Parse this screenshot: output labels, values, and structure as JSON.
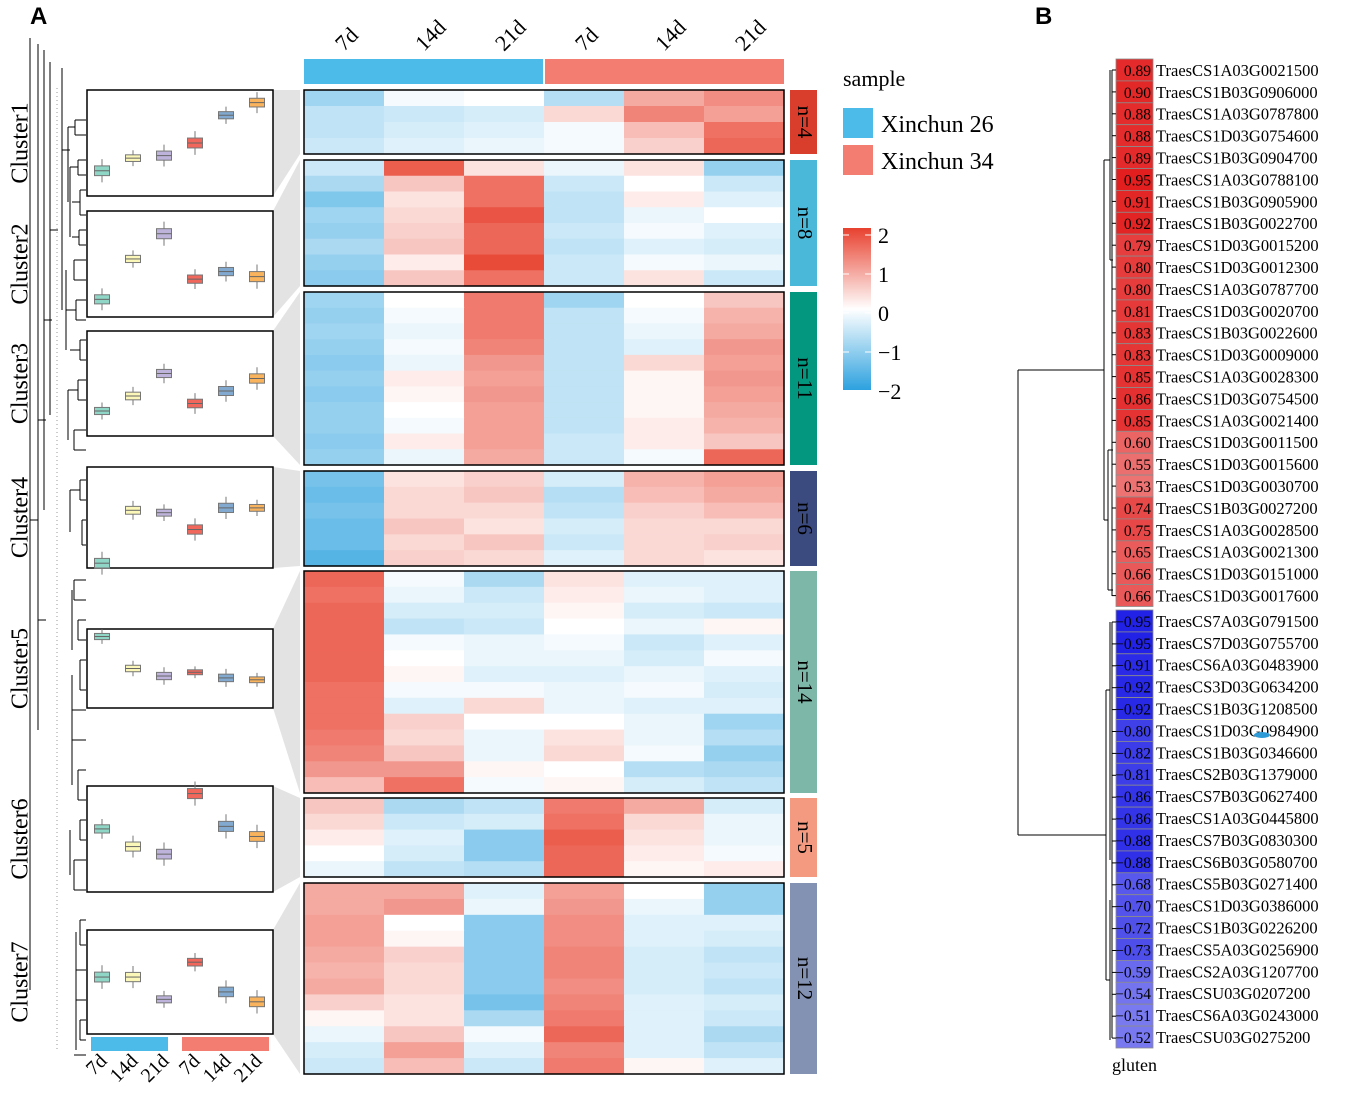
{
  "chart_data": [
    {
      "panel": "A",
      "type": "heatmap",
      "time_labels": [
        "7d",
        "14d",
        "21d",
        "7d",
        "14d",
        "21d"
      ],
      "samples": [
        {
          "name": "Xinchun 26",
          "color": "#4DBBEA",
          "columns": [
            "7d",
            "14d",
            "21d"
          ]
        },
        {
          "name": "Xinchun 34",
          "color": "#F47D72",
          "columns": [
            "7d",
            "14d",
            "21d"
          ]
        }
      ],
      "legend_title": "sample",
      "colorscale": {
        "min": -2,
        "max": 2,
        "ticks": [
          "2",
          "1",
          "0",
          "−1",
          "−2"
        ],
        "colors": [
          "#2CA1DF",
          "#ffffff",
          "#E8412F"
        ]
      },
      "clusters": [
        {
          "name": "Cluster1",
          "n_label": "n=4",
          "color": "#D93D2B",
          "box_medians": [
            -1.1,
            -0.6,
            -0.5,
            0.0,
            1.1,
            1.6
          ],
          "rows": [
            [
              -0.9,
              -0.1,
              0.0,
              -0.7,
              0.9,
              1.2
            ],
            [
              -0.6,
              -0.5,
              -0.4,
              0.4,
              1.3,
              1.0
            ],
            [
              -0.6,
              -0.4,
              -0.3,
              -0.1,
              0.7,
              1.5
            ],
            [
              -0.5,
              -0.3,
              -0.2,
              -0.1,
              0.5,
              1.6
            ]
          ]
        },
        {
          "name": "Cluster2",
          "n_label": "n=8",
          "color": "#4AB9D9",
          "box_medians": [
            -1.4,
            0.2,
            1.2,
            -0.6,
            -0.3,
            -0.5
          ],
          "rows": [
            [
              -0.5,
              1.7,
              0.3,
              -0.2,
              0.3,
              -1.0
            ],
            [
              -0.8,
              0.6,
              1.5,
              -0.5,
              0.0,
              -0.5
            ],
            [
              -1.2,
              0.3,
              1.5,
              -0.6,
              0.2,
              -0.3
            ],
            [
              -0.9,
              0.4,
              1.8,
              -0.6,
              -0.2,
              0.0
            ],
            [
              -1.0,
              0.5,
              1.6,
              -0.5,
              -0.1,
              -0.3
            ],
            [
              -0.8,
              0.6,
              1.6,
              -0.6,
              -0.3,
              -0.4
            ],
            [
              -1.0,
              0.2,
              1.9,
              -0.5,
              -0.1,
              -0.2
            ],
            [
              -1.1,
              0.6,
              1.5,
              -0.5,
              0.3,
              -0.5
            ]
          ]
        },
        {
          "name": "Cluster3",
          "n_label": "n=11",
          "color": "#04977F",
          "box_medians": [
            -1.1,
            -0.5,
            0.4,
            -0.8,
            -0.3,
            0.2
          ],
          "rows": [
            [
              -0.9,
              0.0,
              1.4,
              -0.9,
              0.0,
              0.6
            ],
            [
              -1.0,
              -0.1,
              1.4,
              -0.6,
              -0.1,
              0.8
            ],
            [
              -0.9,
              -0.2,
              1.4,
              -0.6,
              -0.2,
              0.9
            ],
            [
              -1.0,
              -0.1,
              1.3,
              -0.6,
              -0.3,
              1.1
            ],
            [
              -1.1,
              -0.2,
              1.1,
              -0.6,
              0.4,
              1.0
            ],
            [
              -1.0,
              0.2,
              1.0,
              -0.6,
              0.1,
              1.1
            ],
            [
              -1.1,
              0.1,
              1.1,
              -0.6,
              0.1,
              1.0
            ],
            [
              -1.0,
              0.0,
              1.0,
              -0.6,
              0.1,
              0.9
            ],
            [
              -1.0,
              -0.1,
              1.0,
              -0.6,
              0.2,
              0.8
            ],
            [
              -1.1,
              0.2,
              1.0,
              -0.5,
              0.2,
              0.6
            ],
            [
              -1.0,
              -0.2,
              0.9,
              -0.5,
              -0.1,
              1.6
            ]
          ]
        },
        {
          "name": "Cluster4",
          "n_label": "n=6",
          "color": "#3B4A7F",
          "box_medians": [
            -1.9,
            0.3,
            0.2,
            -0.5,
            0.4,
            0.4
          ],
          "rows": [
            [
              -1.3,
              0.3,
              0.5,
              -0.4,
              0.8,
              1.0
            ],
            [
              -1.4,
              0.4,
              0.6,
              -0.7,
              0.7,
              0.9
            ],
            [
              -1.3,
              0.4,
              0.4,
              -0.6,
              0.5,
              0.7
            ],
            [
              -1.4,
              0.6,
              0.3,
              -0.4,
              0.4,
              0.4
            ],
            [
              -1.4,
              0.4,
              0.6,
              -0.5,
              0.4,
              0.5
            ],
            [
              -1.6,
              0.5,
              0.4,
              -0.3,
              0.4,
              0.3
            ]
          ]
        },
        {
          "name": "Cluster5",
          "n_label": "n=14",
          "color": "#7DB7A8",
          "box_medians": [
            1.7,
            0.0,
            -0.4,
            -0.2,
            -0.5,
            -0.6
          ],
          "rows": [
            [
              1.6,
              -0.1,
              -0.8,
              0.3,
              -0.3,
              -0.3
            ],
            [
              1.5,
              -0.2,
              -0.5,
              0.2,
              -0.2,
              -0.3
            ],
            [
              1.6,
              -0.4,
              -0.4,
              0.1,
              -0.4,
              -0.5
            ],
            [
              1.6,
              -0.6,
              -0.5,
              0.0,
              -0.2,
              0.1
            ],
            [
              1.6,
              -0.1,
              -0.2,
              -0.1,
              -0.5,
              -0.3
            ],
            [
              1.6,
              0.0,
              -0.2,
              -0.2,
              -0.4,
              -0.1
            ],
            [
              1.6,
              0.1,
              -0.3,
              -0.3,
              -0.2,
              -0.3
            ],
            [
              1.5,
              -0.1,
              -0.1,
              -0.2,
              -0.1,
              -0.4
            ],
            [
              1.5,
              -0.3,
              0.4,
              -0.2,
              -0.3,
              -0.3
            ],
            [
              1.5,
              0.5,
              0.0,
              0.0,
              -0.2,
              -0.9
            ],
            [
              1.4,
              0.4,
              -0.2,
              0.3,
              -0.2,
              -0.7
            ],
            [
              1.3,
              0.6,
              -0.2,
              0.4,
              -0.1,
              -1.0
            ],
            [
              1.1,
              1.1,
              0.1,
              0.0,
              -0.7,
              -0.8
            ],
            [
              0.7,
              1.5,
              -0.1,
              0.1,
              -0.4,
              -0.6
            ]
          ]
        },
        {
          "name": "Cluster6",
          "n_label": "n=5",
          "color": "#F49A81",
          "box_medians": [
            0.4,
            -0.3,
            -0.6,
            1.8,
            0.5,
            0.1
          ],
          "rows": [
            [
              0.6,
              -0.8,
              -0.6,
              1.4,
              0.9,
              -0.4
            ],
            [
              0.4,
              -0.5,
              -0.4,
              1.5,
              0.4,
              -0.2
            ],
            [
              0.2,
              -0.3,
              -1.1,
              1.7,
              0.3,
              -0.2
            ],
            [
              0.0,
              -0.4,
              -1.1,
              1.6,
              0.2,
              -0.1
            ],
            [
              -0.2,
              -0.6,
              -0.7,
              1.6,
              0.1,
              0.2
            ]
          ]
        },
        {
          "name": "Cluster7",
          "n_label": "n=12",
          "color": "#8391B3",
          "box_medians": [
            0.2,
            0.2,
            -0.7,
            0.8,
            -0.4,
            -0.8
          ],
          "rows": [
            [
              0.9,
              0.9,
              -0.3,
              1.0,
              0.0,
              -1.0
            ],
            [
              0.9,
              1.1,
              -0.2,
              1.1,
              -0.2,
              -1.0
            ],
            [
              1.0,
              0.0,
              -1.1,
              1.2,
              -0.3,
              -0.3
            ],
            [
              1.0,
              0.1,
              -1.1,
              1.2,
              -0.3,
              -0.4
            ],
            [
              0.9,
              0.5,
              -1.1,
              1.3,
              -0.4,
              -0.6
            ],
            [
              0.8,
              0.4,
              -1.1,
              1.3,
              -0.4,
              -0.5
            ],
            [
              0.9,
              0.4,
              -1.1,
              1.2,
              -0.4,
              -0.6
            ],
            [
              0.5,
              0.3,
              -1.3,
              1.3,
              -0.3,
              -0.4
            ],
            [
              0.1,
              0.3,
              -0.8,
              1.4,
              -0.3,
              -0.5
            ],
            [
              -0.2,
              0.6,
              -0.1,
              1.6,
              -0.3,
              -0.8
            ],
            [
              -0.4,
              1.0,
              -0.3,
              1.3,
              -0.3,
              -0.6
            ],
            [
              -0.5,
              0.7,
              -0.5,
              1.4,
              0.1,
              -0.3
            ]
          ]
        }
      ]
    },
    {
      "panel": "B",
      "type": "heatmap",
      "column_label": "gluten",
      "positive": [
        {
          "gene": "TraesCS1A03G0021500",
          "value": "0.89"
        },
        {
          "gene": "TraesCS1B03G0906000",
          "value": "0.90"
        },
        {
          "gene": "TraesCS1A03G0787800",
          "value": "0.88"
        },
        {
          "gene": "TraesCS1D03G0754600",
          "value": "0.88"
        },
        {
          "gene": "TraesCS1B03G0904700",
          "value": "0.89"
        },
        {
          "gene": "TraesCS1A03G0788100",
          "value": "0.95"
        },
        {
          "gene": "TraesCS1B03G0905900",
          "value": "0.91"
        },
        {
          "gene": "TraesCS1B03G0022700",
          "value": "0.92"
        },
        {
          "gene": "TraesCS1D03G0015200",
          "value": "0.79"
        },
        {
          "gene": "TraesCS1D03G0012300",
          "value": "0.80"
        },
        {
          "gene": "TraesCS1A03G0787700",
          "value": "0.80"
        },
        {
          "gene": "TraesCS1D03G0020700",
          "value": "0.81"
        },
        {
          "gene": "TraesCS1B03G0022600",
          "value": "0.83"
        },
        {
          "gene": "TraesCS1D03G0009000",
          "value": "0.83"
        },
        {
          "gene": "TraesCS1A03G0028300",
          "value": "0.85"
        },
        {
          "gene": "TraesCS1D03G0754500",
          "value": "0.86"
        },
        {
          "gene": "TraesCS1A03G0021400",
          "value": "0.85"
        },
        {
          "gene": "TraesCS1D03G0011500",
          "value": "0.60"
        },
        {
          "gene": "TraesCS1D03G0015600",
          "value": "0.55"
        },
        {
          "gene": "TraesCS1D03G0030700",
          "value": "0.53"
        },
        {
          "gene": "TraesCS1B03G0027200",
          "value": "0.74"
        },
        {
          "gene": "TraesCS1A03G0028500",
          "value": "0.75"
        },
        {
          "gene": "TraesCS1A03G0021300",
          "value": "0.65"
        },
        {
          "gene": "TraesCS1D03G0151000",
          "value": "0.66"
        },
        {
          "gene": "TraesCS1D03G0017600",
          "value": "0.66"
        }
      ],
      "negative": [
        {
          "gene": "TraesCS7A03G0791500",
          "value": "−0.95"
        },
        {
          "gene": "TraesCS7D03G0755700",
          "value": "−0.95"
        },
        {
          "gene": "TraesCS6A03G0483900",
          "value": "−0.91"
        },
        {
          "gene": "TraesCS3D03G0634200",
          "value": "−0.92"
        },
        {
          "gene": "TraesCS1B03G1208500",
          "value": "−0.92"
        },
        {
          "gene": "TraesCS1D03G0984900",
          "value": "−0.80"
        },
        {
          "gene": "TraesCS1B03G0346600",
          "value": "−0.82"
        },
        {
          "gene": "TraesCS2B03G1379000",
          "value": "−0.81"
        },
        {
          "gene": "TraesCS7B03G0627400",
          "value": "−0.86"
        },
        {
          "gene": "TraesCS1A03G0445800",
          "value": "−0.86"
        },
        {
          "gene": "TraesCS7B03G0830300",
          "value": "−0.88"
        },
        {
          "gene": "TraesCS6B03G0580700",
          "value": "−0.88"
        },
        {
          "gene": "TraesCS5B03G0271400",
          "value": "−0.68"
        },
        {
          "gene": "TraesCS1D03G0386000",
          "value": "−0.70"
        },
        {
          "gene": "TraesCS1B03G0226200",
          "value": "−0.72"
        },
        {
          "gene": "TraesCS5A03G0256900",
          "value": "−0.73"
        },
        {
          "gene": "TraesCS2A03G1207700",
          "value": "−0.59"
        },
        {
          "gene": "TraesCSU03G0207200",
          "value": "−0.54"
        },
        {
          "gene": "TraesCS6A03G0243000",
          "value": "−0.51"
        },
        {
          "gene": "TraesCSU03G0275200",
          "value": "−0.52"
        }
      ]
    }
  ],
  "panels": {
    "a": "A",
    "b": "B"
  }
}
